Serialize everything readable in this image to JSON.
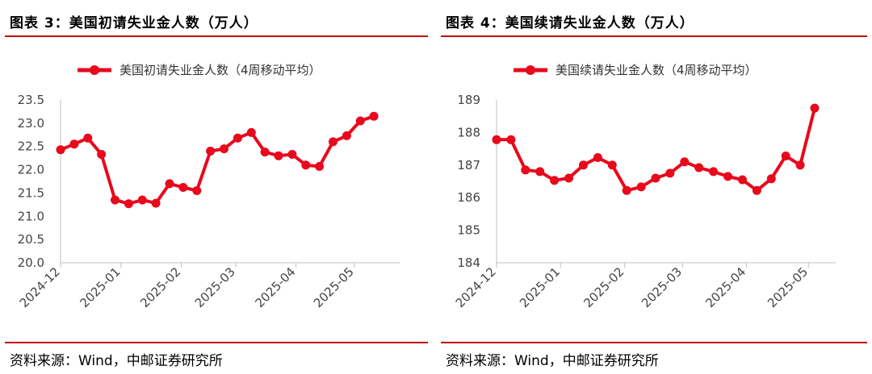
{
  "source_text": "资料来源：Wind，中邮证券研究所",
  "chart_data": [
    {
      "type": "line",
      "title": "图表 3：美国初请失业金人数（万人）",
      "legend": "美国初请失业金人数（4周移动平均）",
      "legend_position": "top",
      "grid": false,
      "color": "#e8091c",
      "xlabel": "",
      "ylabel": "",
      "ylim": [
        20.0,
        23.5
      ],
      "yticks": [
        "20.0",
        "20.5",
        "21.0",
        "21.5",
        "22.0",
        "22.5",
        "23.0",
        "23.5"
      ],
      "xticks": [
        {
          "label": "2024-12",
          "date": "2024-12-01"
        },
        {
          "label": "2025-01",
          "date": "2025-01-01"
        },
        {
          "label": "2025-02",
          "date": "2025-02-01"
        },
        {
          "label": "2025-03",
          "date": "2025-03-01"
        },
        {
          "label": "2025-04",
          "date": "2025-04-01"
        },
        {
          "label": "2025-05",
          "date": "2025-05-01"
        }
      ],
      "x": [
        "2024-12-01",
        "2024-12-08",
        "2024-12-15",
        "2024-12-22",
        "2024-12-29",
        "2025-01-05",
        "2025-01-12",
        "2025-01-19",
        "2025-01-26",
        "2025-02-02",
        "2025-02-09",
        "2025-02-16",
        "2025-02-23",
        "2025-03-02",
        "2025-03-09",
        "2025-03-16",
        "2025-03-23",
        "2025-03-30",
        "2025-04-06",
        "2025-04-13",
        "2025-04-20",
        "2025-04-27",
        "2025-05-04",
        "2025-05-11",
        "2025-05-18"
      ],
      "values": [
        22.43,
        22.55,
        22.68,
        22.33,
        21.35,
        21.27,
        21.35,
        21.28,
        21.7,
        21.62,
        21.55,
        22.4,
        22.45,
        22.68,
        22.8,
        22.38,
        22.3,
        22.33,
        22.1,
        22.07,
        22.6,
        22.73,
        23.05,
        23.15,
        null
      ]
    },
    {
      "type": "line",
      "title": "图表 4：美国续请失业金人数（万人）",
      "legend": "美国续请失业金人数（4周移动平均）",
      "legend_position": "top",
      "grid": false,
      "color": "#e8091c",
      "xlabel": "",
      "ylabel": "",
      "ylim": [
        184,
        189
      ],
      "yticks": [
        "184",
        "185",
        "186",
        "187",
        "188",
        "189"
      ],
      "xticks": [
        {
          "label": "2024-12",
          "date": "2024-12-01"
        },
        {
          "label": "2025-01",
          "date": "2025-01-01"
        },
        {
          "label": "2025-02",
          "date": "2025-02-01"
        },
        {
          "label": "2025-03",
          "date": "2025-03-01"
        },
        {
          "label": "2025-04",
          "date": "2025-04-01"
        },
        {
          "label": "2025-05",
          "date": "2025-05-01"
        }
      ],
      "x": [
        "2024-12-01",
        "2024-12-08",
        "2024-12-15",
        "2024-12-22",
        "2024-12-29",
        "2025-01-05",
        "2025-01-12",
        "2025-01-19",
        "2025-01-26",
        "2025-02-02",
        "2025-02-09",
        "2025-02-16",
        "2025-02-23",
        "2025-03-02",
        "2025-03-09",
        "2025-03-16",
        "2025-03-23",
        "2025-03-30",
        "2025-04-06",
        "2025-04-13",
        "2025-04-20",
        "2025-04-27",
        "2025-05-04"
      ],
      "values": [
        187.78,
        187.78,
        186.85,
        186.8,
        186.53,
        186.6,
        187.0,
        187.23,
        187.0,
        186.22,
        186.33,
        186.6,
        186.75,
        187.1,
        186.92,
        186.8,
        186.65,
        186.55,
        186.22,
        186.58,
        187.28,
        187.0,
        188.75
      ]
    }
  ]
}
